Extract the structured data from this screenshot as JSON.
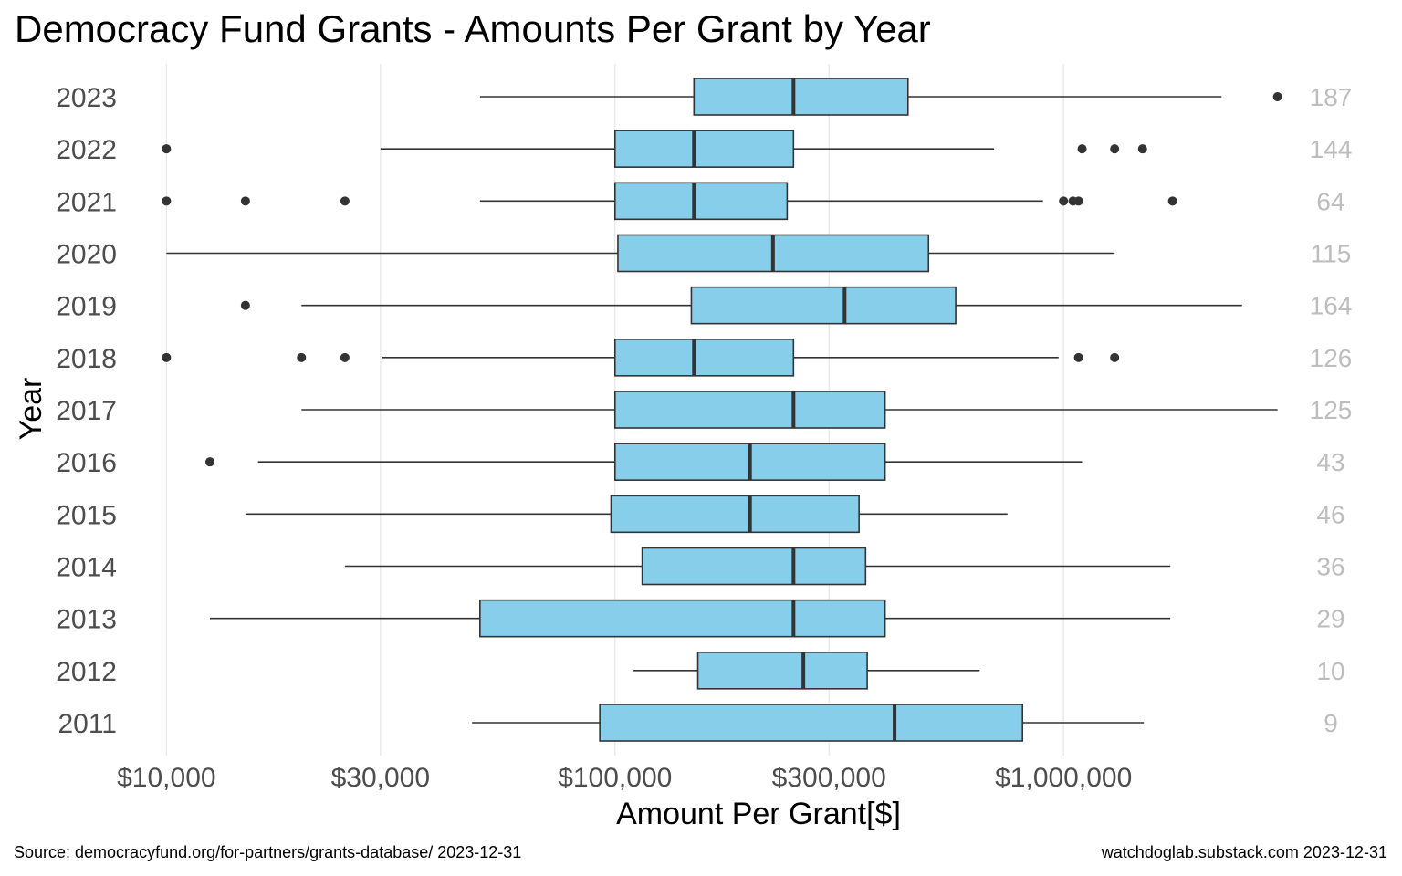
{
  "chart_data": {
    "type": "boxplot",
    "title": "Democracy Fund Grants - Amounts Per Grant by Year",
    "xlabel": "Amount Per Grant[$]",
    "ylabel": "Year",
    "x_scale": "log10",
    "xlim": [
      8200,
      3300000
    ],
    "x_ticks": [
      {
        "value": 10000,
        "label": "$10,000"
      },
      {
        "value": 30000,
        "label": "$30,000"
      },
      {
        "value": 100000,
        "label": "$100,000"
      },
      {
        "value": 300000,
        "label": "$300,000"
      },
      {
        "value": 1000000,
        "label": "$1,000,000"
      }
    ],
    "grid": "vertical major",
    "box_fill": "#87CEEB",
    "box_stroke": "#333333",
    "count_color": "#bdbdbd",
    "series": [
      {
        "year": "2023",
        "whisker_low": 50000,
        "q1": 150000,
        "median": 250000,
        "q3": 450000,
        "whisker_high": 2250000,
        "outliers": [
          3000000
        ],
        "count": "187"
      },
      {
        "year": "2022",
        "whisker_low": 30000,
        "q1": 100000,
        "median": 150000,
        "q3": 250000,
        "whisker_high": 700000,
        "outliers": [
          10000,
          1100000,
          1300000,
          1500000
        ],
        "count": "144"
      },
      {
        "year": "2021",
        "whisker_low": 50000,
        "q1": 100000,
        "median": 150000,
        "q3": 242000,
        "whisker_high": 900000,
        "outliers": [
          10000,
          15000,
          25000,
          1000000,
          1050000,
          1080000,
          1750000
        ],
        "count": "64"
      },
      {
        "year": "2020",
        "whisker_low": 10000,
        "q1": 101500,
        "median": 225000,
        "q3": 500000,
        "whisker_high": 1300000,
        "outliers": [],
        "count": "115"
      },
      {
        "year": "2019",
        "whisker_low": 20000,
        "q1": 148000,
        "median": 325000,
        "q3": 575000,
        "whisker_high": 2500000,
        "outliers": [
          15000
        ],
        "count": "164"
      },
      {
        "year": "2018",
        "whisker_low": 30300,
        "q1": 100000,
        "median": 150000,
        "q3": 250000,
        "whisker_high": 975000,
        "outliers": [
          10000,
          20000,
          25000,
          1080000,
          1300000
        ],
        "count": "126"
      },
      {
        "year": "2017",
        "whisker_low": 20000,
        "q1": 100000,
        "median": 250000,
        "q3": 400000,
        "whisker_high": 3000000,
        "outliers": [],
        "count": "125"
      },
      {
        "year": "2016",
        "whisker_low": 16000,
        "q1": 100000,
        "median": 200000,
        "q3": 400000,
        "whisker_high": 1100000,
        "outliers": [
          12500
        ],
        "count": "43"
      },
      {
        "year": "2015",
        "whisker_low": 15000,
        "q1": 98000,
        "median": 200000,
        "q3": 350000,
        "whisker_high": 750000,
        "outliers": [],
        "count": "46"
      },
      {
        "year": "2014",
        "whisker_low": 25000,
        "q1": 115000,
        "median": 250000,
        "q3": 362000,
        "whisker_high": 1730000,
        "outliers": [],
        "count": "36"
      },
      {
        "year": "2013",
        "whisker_low": 12500,
        "q1": 50000,
        "median": 250000,
        "q3": 400000,
        "whisker_high": 1730000,
        "outliers": [],
        "count": "29"
      },
      {
        "year": "2012",
        "whisker_low": 110000,
        "q1": 153000,
        "median": 263000,
        "q3": 365000,
        "whisker_high": 650000,
        "outliers": [],
        "count": "10"
      },
      {
        "year": "2011",
        "whisker_low": 48000,
        "q1": 92500,
        "median": 420000,
        "q3": 810000,
        "whisker_high": 1510000,
        "outliers": [],
        "count": "9"
      }
    ]
  },
  "footer": {
    "source": "Source:  democracyfund.org/for-partners/grants-database/  2023-12-31",
    "credit": "watchdoglab.substack.com  2023-12-31"
  }
}
